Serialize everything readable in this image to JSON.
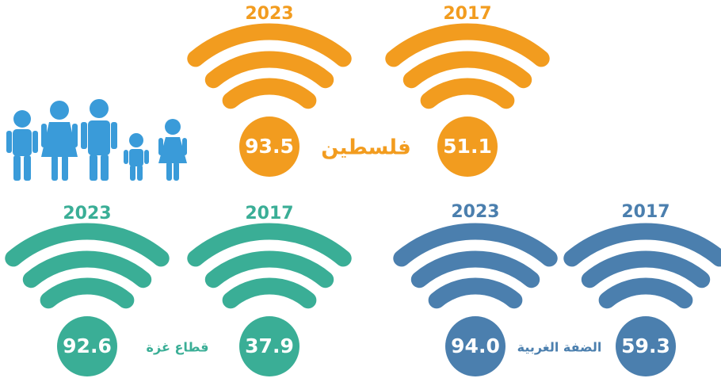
{
  "groups": [
    {
      "label": "فلسطين",
      "color": "#f29c1f",
      "items": [
        {
          "year": "2023",
          "value": "93.5"
        },
        {
          "year": "2017",
          "value": "51.1"
        }
      ]
    },
    {
      "label": "قطاع غزة",
      "color": "#3aae96",
      "items": [
        {
          "year": "2023",
          "value": "92.6"
        },
        {
          "year": "2017",
          "value": "37.9"
        }
      ]
    },
    {
      "label": "الضفة الغربية",
      "color": "#4b7fae",
      "items": [
        {
          "year": "2023",
          "value": "94.0"
        },
        {
          "year": "2017",
          "value": "59.3"
        }
      ]
    }
  ]
}
